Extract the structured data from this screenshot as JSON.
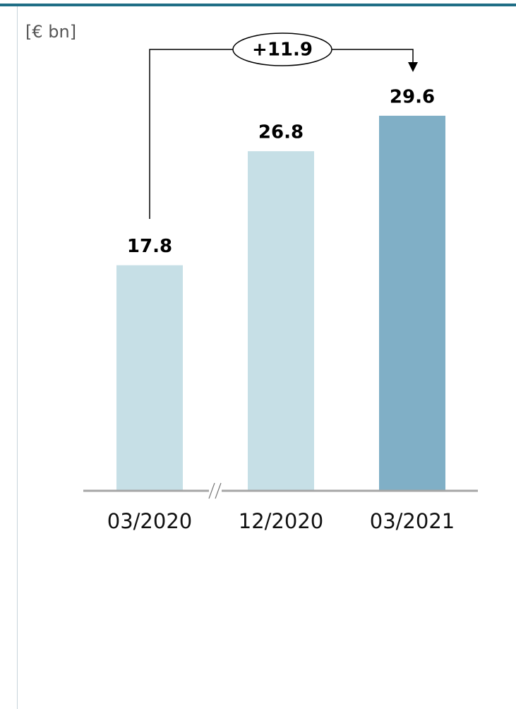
{
  "chart_data": {
    "type": "bar",
    "unit_label": "[€ bn]",
    "categories": [
      "03/2020",
      "12/2020",
      "03/2021"
    ],
    "values": [
      17.8,
      26.8,
      29.6
    ],
    "colors": [
      "#c6dfe6",
      "#c6dfe6",
      "#80afc6"
    ],
    "ylim": [
      0,
      35
    ],
    "annotation": "+11.9"
  }
}
